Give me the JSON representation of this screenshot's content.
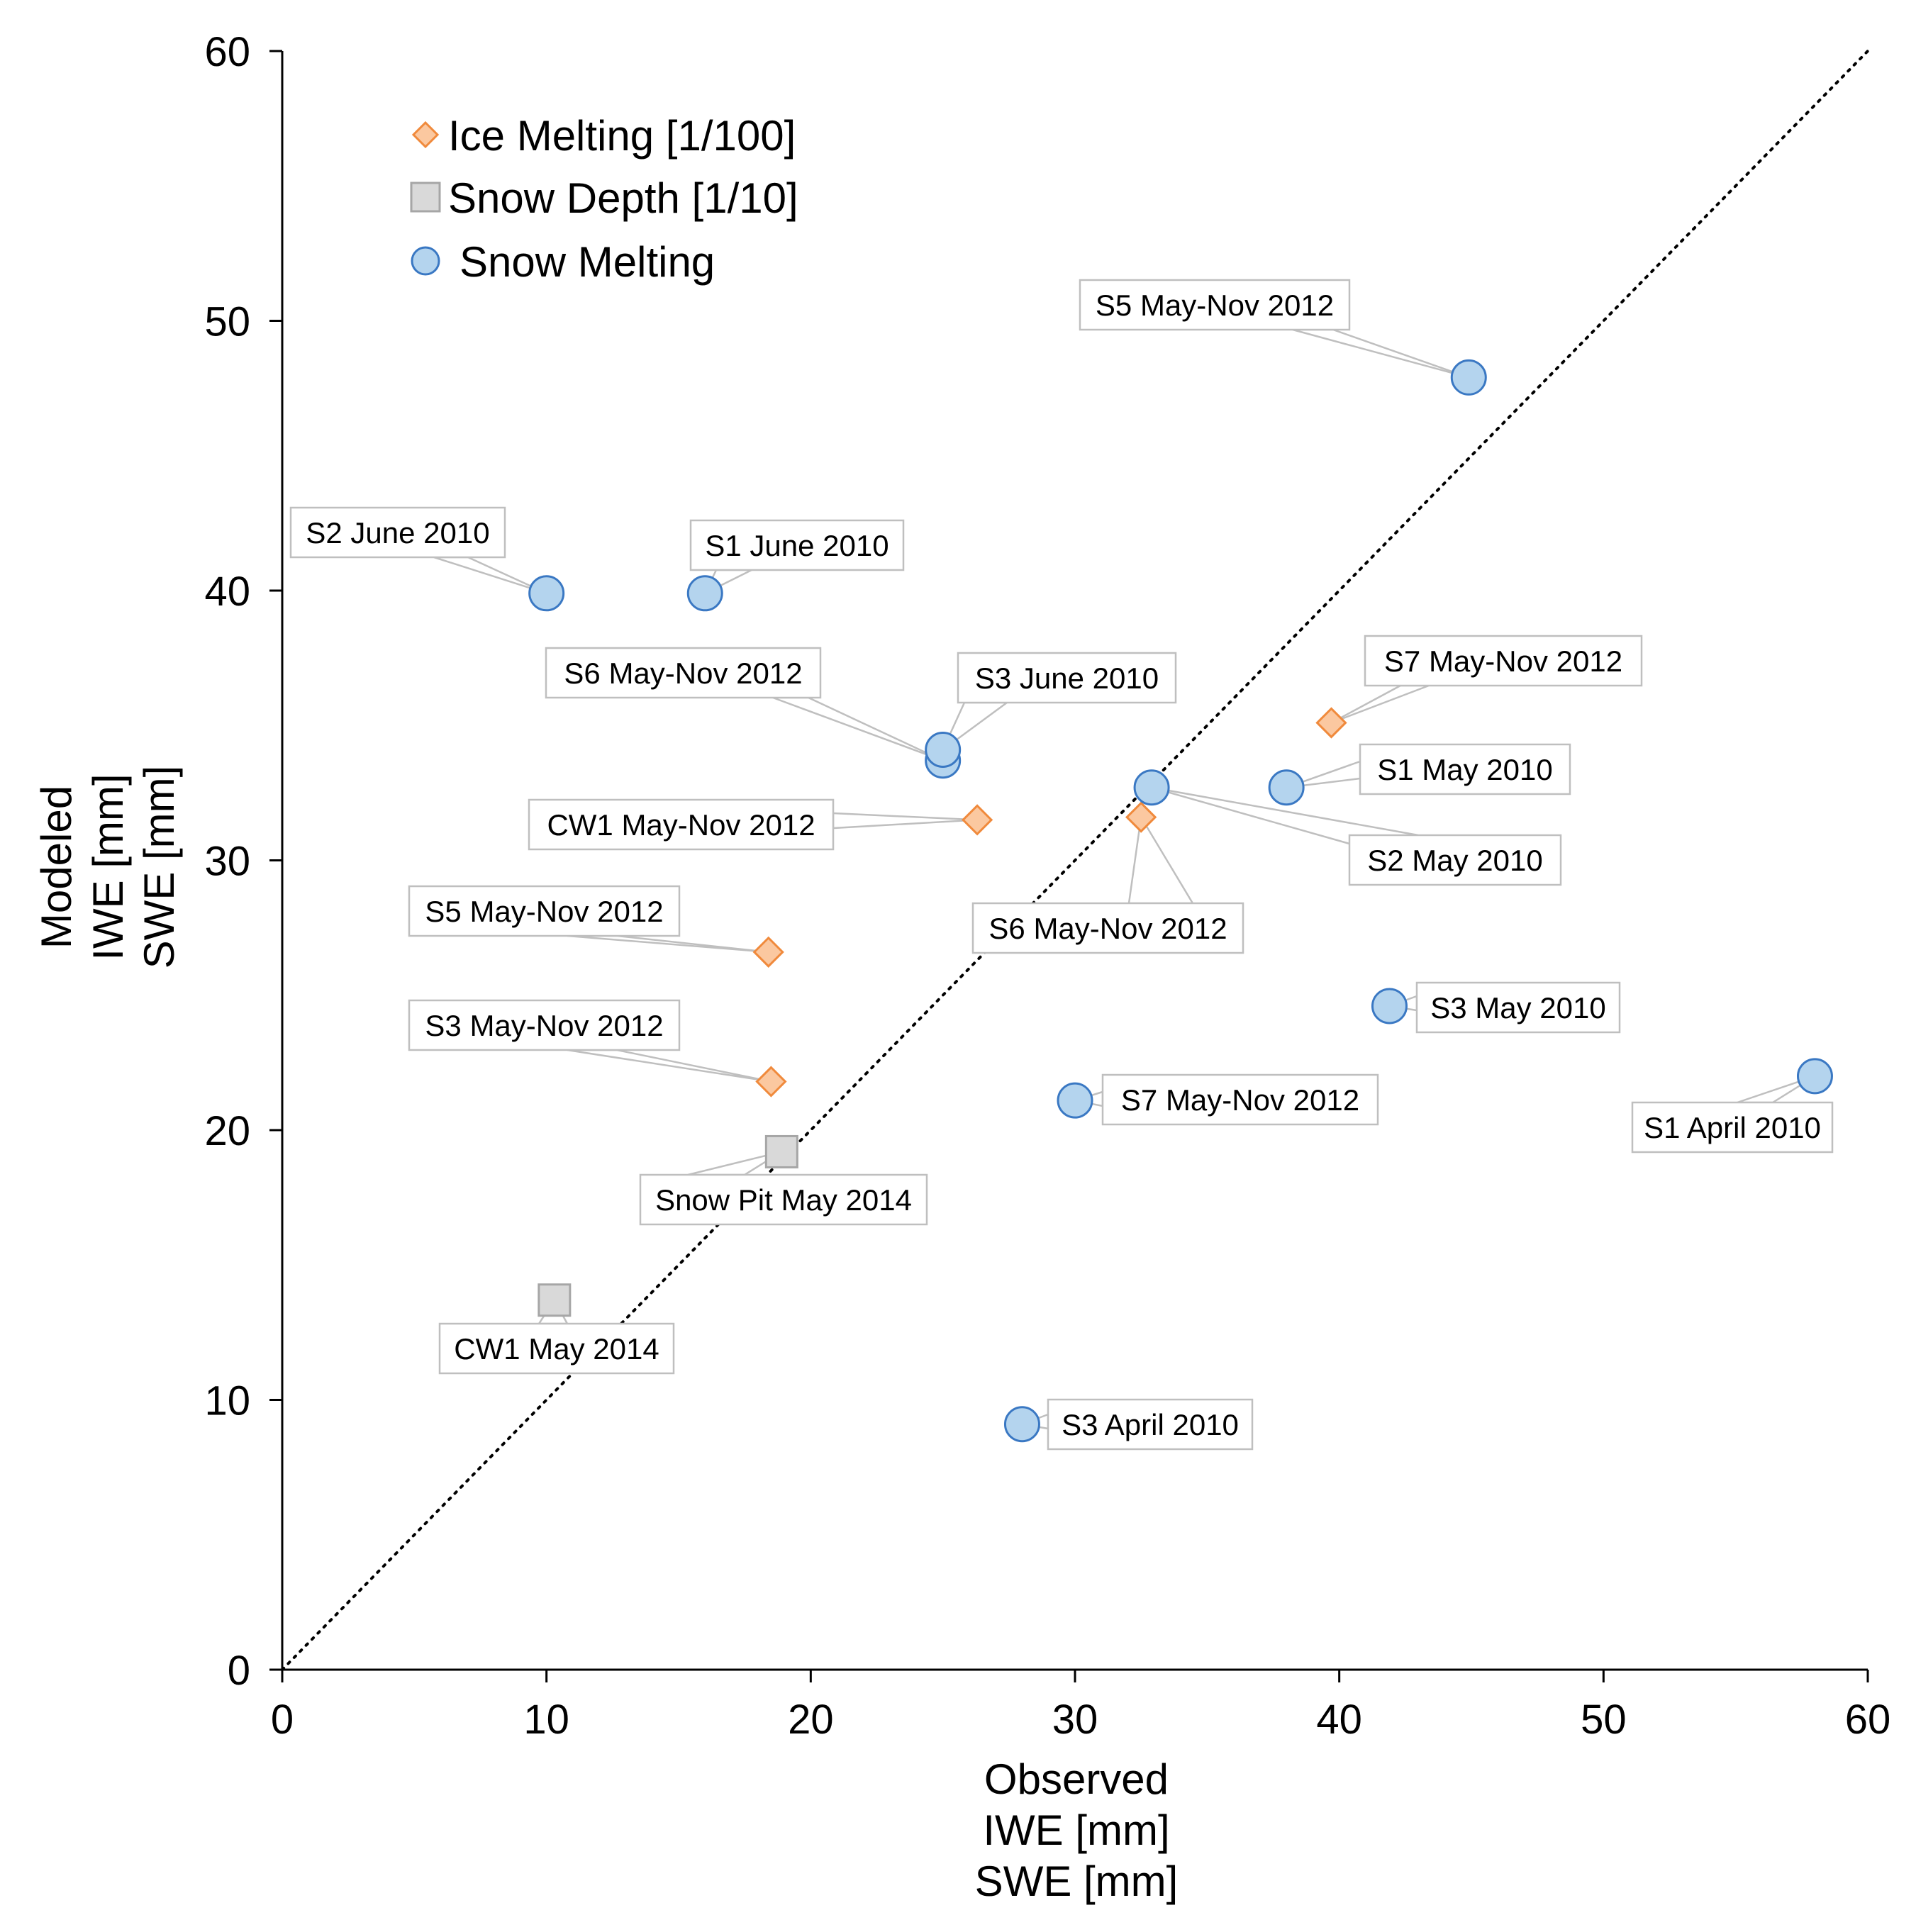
{
  "chart_data": {
    "type": "scatter",
    "title": "",
    "xlabel": [
      "Observed",
      "IWE [mm]",
      "SWE [mm]"
    ],
    "ylabel": [
      "Modeled",
      "IWE [mm]",
      "SWE [mm]"
    ],
    "xlim": [
      0,
      60
    ],
    "ylim": [
      0,
      60
    ],
    "xticks": [
      "0",
      "10",
      "20",
      "30",
      "40",
      "50",
      "60"
    ],
    "yticks": [
      "0",
      "10",
      "20",
      "30",
      "40",
      "50",
      "60"
    ],
    "grid": false,
    "one_to_one_line": true,
    "legend_position": "top-left",
    "colors": {
      "ice_fill": "#fbc8a0",
      "ice_stroke": "#f08a3c",
      "snowdepth_fill": "#d9d9d9",
      "snowdepth_stroke": "#a6a6a6",
      "snowmelt_fill": "#b4d4ee",
      "snowmelt_stroke": "#3a78c3",
      "callout_border": "#bfbfbf"
    },
    "series": [
      {
        "name": "Ice Melting [1/100]",
        "marker": "diamond",
        "points": [
          {
            "x": 39.7,
            "y": 35.1,
            "label": "S7 May-Nov 2012"
          },
          {
            "x": 26.3,
            "y": 31.5,
            "label": "CW1 May-Nov 2012"
          },
          {
            "x": 32.5,
            "y": 31.6,
            "label": "S6 May-Nov 2012"
          },
          {
            "x": 18.4,
            "y": 26.6,
            "label": "S5 May-Nov 2012"
          },
          {
            "x": 18.5,
            "y": 21.8,
            "label": "S3 May-Nov 2012"
          }
        ]
      },
      {
        "name": "Snow Depth [1/10]",
        "marker": "square",
        "points": [
          {
            "x": 18.9,
            "y": 19.2,
            "label": "Snow Pit May 2014"
          },
          {
            "x": 10.3,
            "y": 13.7,
            "label": "CW1 May 2014"
          }
        ]
      },
      {
        "name": "Snow Melting",
        "marker": "circle",
        "points": [
          {
            "x": 44.9,
            "y": 47.9,
            "label": "S5 May-Nov 2012"
          },
          {
            "x": 10.0,
            "y": 39.9,
            "label": "S2 June 2010"
          },
          {
            "x": 16.0,
            "y": 39.9,
            "label": "S1 June 2010"
          },
          {
            "x": 25.0,
            "y": 33.7,
            "label": "S6 May-Nov 2012"
          },
          {
            "x": 25.0,
            "y": 34.1,
            "label": "S3 June 2010"
          },
          {
            "x": 32.9,
            "y": 32.7,
            "label": "S2 May 2010"
          },
          {
            "x": 38.0,
            "y": 32.7,
            "label": "S1 May 2010"
          },
          {
            "x": 41.9,
            "y": 24.6,
            "label": "S3 May 2010"
          },
          {
            "x": 30.0,
            "y": 21.1,
            "label": "S7 May-Nov 2012"
          },
          {
            "x": 58.0,
            "y": 22.0,
            "label": "S1 April 2010"
          },
          {
            "x": 28.0,
            "y": 9.1,
            "label": "S3 April 2010"
          }
        ]
      }
    ]
  }
}
